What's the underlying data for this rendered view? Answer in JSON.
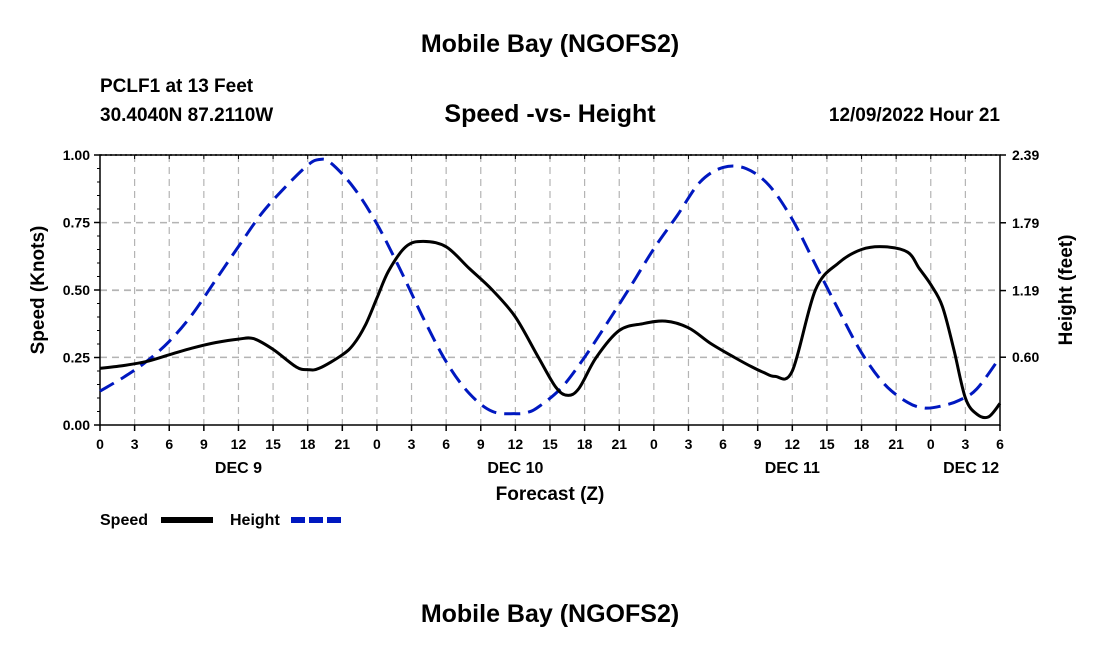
{
  "page": {
    "title": "Mobile Bay (NGOFS2)",
    "station": "PCLF1 at 13 Feet",
    "coords": "30.4040N  87.2110W",
    "subtitle": "Speed -vs- Height",
    "timestamp": "12/09/2022 Hour 21",
    "bottom_title": "Mobile Bay (NGOFS2)"
  },
  "chart_data": {
    "type": "line",
    "xlabel": "Forecast (Z)",
    "ylabel_left": "Speed (Knots)",
    "ylabel_right": "Height (feet)",
    "x_range": [
      0,
      78
    ],
    "left_ylim": [
      0,
      1
    ],
    "right_ylim": [
      0,
      2.39
    ],
    "x_ticks": [
      0,
      3,
      6,
      9,
      12,
      15,
      18,
      21,
      24,
      27,
      30,
      33,
      36,
      39,
      42,
      45,
      48,
      51,
      54,
      57,
      60,
      63,
      66,
      69,
      72,
      75,
      78
    ],
    "x_tick_labels": [
      "0",
      "3",
      "6",
      "9",
      "12",
      "15",
      "18",
      "21",
      "0",
      "3",
      "6",
      "9",
      "12",
      "15",
      "18",
      "21",
      "0",
      "3",
      "6",
      "9",
      "12",
      "15",
      "18",
      "21",
      "0",
      "3",
      "6"
    ],
    "day_labels": [
      {
        "x": 12,
        "label": "DEC 9"
      },
      {
        "x": 36,
        "label": "DEC 10"
      },
      {
        "x": 60,
        "label": "DEC 11"
      },
      {
        "x": 75.5,
        "label": "DEC 12"
      }
    ],
    "left_ticks": [
      0,
      0.25,
      0.5,
      0.75,
      1.0
    ],
    "left_tick_labels": [
      "0.00",
      "0.25",
      "0.50",
      "0.75",
      "1.00"
    ],
    "right_ticks": [
      0.6,
      1.19,
      1.79,
      2.39
    ],
    "right_tick_labels": [
      "0.60",
      "1.19",
      "1.79",
      "2.39"
    ],
    "series": [
      {
        "name": "Speed",
        "axis": "left",
        "color": "#000000",
        "dash": "solid",
        "x": [
          0,
          2,
          4,
          6,
          8,
          10,
          12,
          13.3,
          15,
          17,
          18,
          19,
          21,
          22,
          23,
          24,
          25,
          26.5,
          28,
          30,
          32,
          34,
          36,
          38,
          39.5,
          40.5,
          41.5,
          43,
          45,
          47,
          49,
          51,
          53,
          55,
          56.5,
          57.5,
          58.5,
          60,
          62,
          64,
          66,
          68,
          70,
          71,
          72,
          73,
          74,
          75,
          76,
          77,
          78
        ],
        "y": [
          0.21,
          0.22,
          0.235,
          0.26,
          0.285,
          0.305,
          0.318,
          0.32,
          0.28,
          0.215,
          0.205,
          0.21,
          0.26,
          0.3,
          0.37,
          0.47,
          0.57,
          0.66,
          0.68,
          0.66,
          0.58,
          0.5,
          0.4,
          0.25,
          0.14,
          0.11,
          0.135,
          0.25,
          0.35,
          0.375,
          0.385,
          0.36,
          0.3,
          0.25,
          0.215,
          0.195,
          0.18,
          0.2,
          0.5,
          0.6,
          0.65,
          0.66,
          0.64,
          0.58,
          0.52,
          0.44,
          0.28,
          0.1,
          0.04,
          0.03,
          0.08
        ]
      },
      {
        "name": "Height",
        "axis": "right",
        "color": "#0018c0",
        "dash": "dashed",
        "x": [
          0,
          2,
          4,
          6,
          8,
          10,
          12,
          14,
          16,
          18,
          19,
          20,
          22,
          24,
          26,
          28,
          30,
          32,
          34,
          36,
          37,
          38,
          40,
          42,
          44,
          46,
          48,
          50,
          52,
          54,
          56,
          58,
          60,
          62,
          64,
          66,
          68,
          70,
          71.5,
          73,
          74.5,
          76,
          78
        ],
        "y": [
          0.3,
          0.42,
          0.56,
          0.74,
          0.98,
          1.28,
          1.58,
          1.87,
          2.1,
          2.3,
          2.35,
          2.32,
          2.1,
          1.78,
          1.38,
          0.95,
          0.56,
          0.28,
          0.12,
          0.1,
          0.11,
          0.16,
          0.33,
          0.6,
          0.91,
          1.23,
          1.56,
          1.85,
          2.15,
          2.28,
          2.27,
          2.12,
          1.82,
          1.42,
          1.02,
          0.64,
          0.36,
          0.2,
          0.15,
          0.17,
          0.22,
          0.32,
          0.6
        ]
      }
    ],
    "legend": [
      {
        "label": "Speed",
        "color": "#000000",
        "dash": "solid"
      },
      {
        "label": "Height",
        "color": "#0018c0",
        "dash": "dashed"
      }
    ]
  }
}
